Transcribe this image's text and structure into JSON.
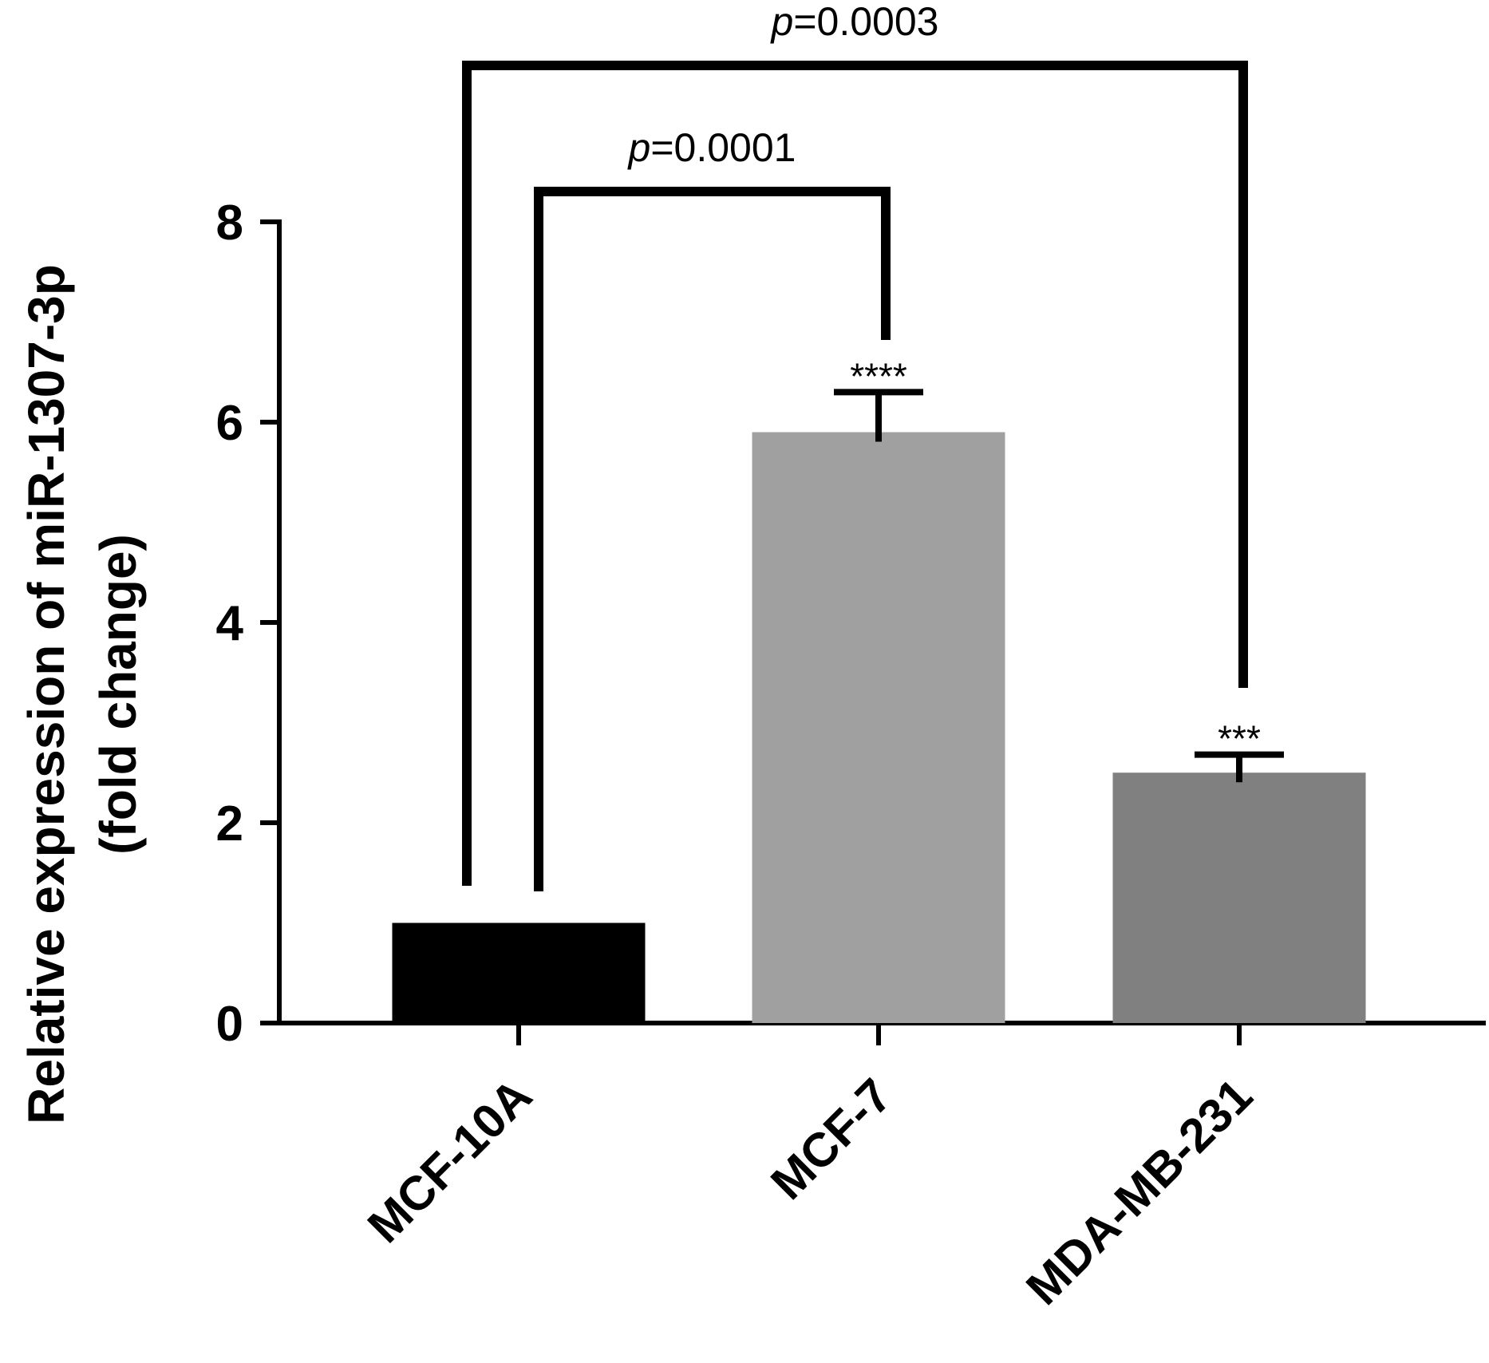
{
  "chart_data": {
    "type": "bar",
    "categories": [
      "MCF-10A",
      "MCF-7",
      "MDA-MB-231"
    ],
    "values": [
      1.0,
      5.9,
      2.5
    ],
    "errors": [
      0,
      0.4,
      0.18
    ],
    "colors": [
      "#000000",
      "#a0a0a0",
      "#808080"
    ],
    "significance": [
      "",
      "****",
      "***"
    ],
    "ylabel_line1": "Relative expression of miR-1307-3p",
    "ylabel_line2": "(fold change)",
    "ylim": [
      0,
      8
    ],
    "yticks": [
      "0",
      "2",
      "4",
      "6",
      "8"
    ],
    "comparisons": [
      {
        "from": 0,
        "to": 1,
        "p_symbol": "p",
        "p_value": "=0.0001"
      },
      {
        "from": 0,
        "to": 2,
        "p_symbol": "p",
        "p_value": "=0.0003"
      }
    ]
  }
}
